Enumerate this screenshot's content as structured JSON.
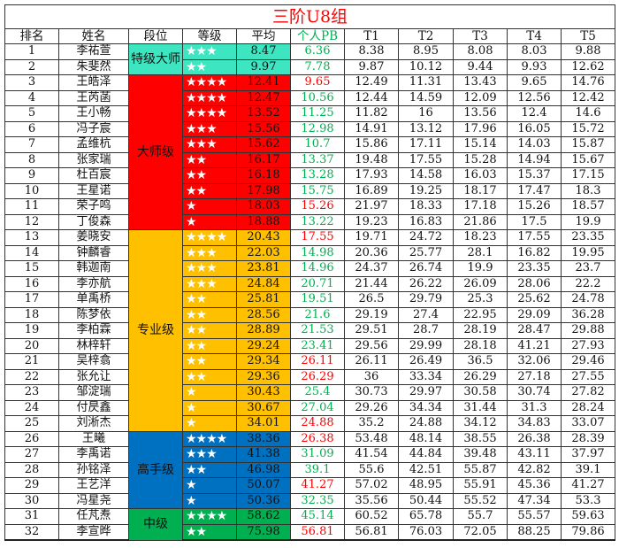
{
  "title": "三阶U8组",
  "headers": [
    "排名",
    "姓名",
    "段位",
    "等级",
    "平均",
    "个人PB",
    "T1",
    "T2",
    "T3",
    "T4",
    "T5"
  ],
  "colors": {
    "特级大师": "#3de6c0",
    "大师级": "#ff0000",
    "专业级": "#ffc000",
    "高手级": "#0070c0",
    "中级": "#00b050",
    "pb_good": "#00b050",
    "pb_bad": "#ff0000"
  },
  "segments": [
    {
      "label": "特级大师",
      "rows": 2
    },
    {
      "label": "大师级",
      "rows": 10
    },
    {
      "label": "专业级",
      "rows": 13
    },
    {
      "label": "高手级",
      "rows": 5
    },
    {
      "label": "中级",
      "rows": 2
    }
  ],
  "star_glyph": "★",
  "rows": [
    {
      "rank": "1",
      "name": "李祐萱",
      "stars": 3,
      "avg": "8.47",
      "pb": "6.36",
      "pb_status": "green",
      "t": [
        "8.38",
        "8.95",
        "8.08",
        "8.03",
        "9.88"
      ]
    },
    {
      "rank": "2",
      "name": "朱斐然",
      "stars": 2,
      "avg": "9.97",
      "pb": "7.78",
      "pb_status": "green",
      "t": [
        "9.87",
        "10.12",
        "9.44",
        "9.93",
        "12.62"
      ]
    },
    {
      "rank": "3",
      "name": "王皓泽",
      "stars": 4,
      "avg": "12.41",
      "pb": "9.65",
      "pb_status": "red",
      "t": [
        "12.49",
        "11.31",
        "13.43",
        "9.65",
        "14.76"
      ]
    },
    {
      "rank": "4",
      "name": "王芮菡",
      "stars": 4,
      "avg": "12.47",
      "pb": "10.56",
      "pb_status": "green",
      "t": [
        "12.44",
        "14.59",
        "12.09",
        "12.56",
        "12.42"
      ]
    },
    {
      "rank": "5",
      "name": "王小畅",
      "stars": 4,
      "avg": "13.52",
      "pb": "11.25",
      "pb_status": "green",
      "t": [
        "11.82",
        "16",
        "13.56",
        "12.4",
        "14.6"
      ]
    },
    {
      "rank": "6",
      "name": "冯子宸",
      "stars": 3,
      "avg": "15.56",
      "pb": "12.98",
      "pb_status": "green",
      "t": [
        "14.91",
        "13.12",
        "17.96",
        "16.05",
        "15.72"
      ]
    },
    {
      "rank": "7",
      "name": "孟维杭",
      "stars": 3,
      "avg": "15.62",
      "pb": "10.7",
      "pb_status": "green",
      "t": [
        "15.86",
        "17.11",
        "15.14",
        "14.03",
        "15.87"
      ]
    },
    {
      "rank": "8",
      "name": "张家瑞",
      "stars": 2,
      "avg": "16.17",
      "pb": "13.37",
      "pb_status": "green",
      "t": [
        "19.48",
        "17.55",
        "15.28",
        "14.94",
        "15.67"
      ]
    },
    {
      "rank": "9",
      "name": "杜百宸",
      "stars": 2,
      "avg": "16.18",
      "pb": "13.28",
      "pb_status": "green",
      "t": [
        "17.93",
        "14.58",
        "16.03",
        "15.37",
        "17.15"
      ]
    },
    {
      "rank": "10",
      "name": "王星诺",
      "stars": 2,
      "avg": "17.98",
      "pb": "15.75",
      "pb_status": "green",
      "t": [
        "16.89",
        "19.25",
        "18.17",
        "17.47",
        "18.3"
      ]
    },
    {
      "rank": "11",
      "name": "荣子鸣",
      "stars": 1,
      "avg": "18.03",
      "pb": "15.26",
      "pb_status": "red",
      "t": [
        "21.97",
        "18.33",
        "17.18",
        "15.26",
        "18.57"
      ]
    },
    {
      "rank": "12",
      "name": "丁俊森",
      "stars": 1,
      "avg": "18.88",
      "pb": "13.22",
      "pb_status": "green",
      "t": [
        "19.23",
        "16.83",
        "21.86",
        "17.5",
        "19.9"
      ]
    },
    {
      "rank": "13",
      "name": "姜晓安",
      "stars": 4,
      "avg": "20.43",
      "pb": "17.55",
      "pb_status": "red",
      "t": [
        "19.71",
        "24.72",
        "18.23",
        "17.55",
        "23.35"
      ]
    },
    {
      "rank": "14",
      "name": "钟麟睿",
      "stars": 3,
      "avg": "22.03",
      "pb": "14.98",
      "pb_status": "green",
      "t": [
        "20.36",
        "25.77",
        "28.1",
        "16.82",
        "19.95"
      ]
    },
    {
      "rank": "15",
      "name": "韩迦南",
      "stars": 3,
      "avg": "23.81",
      "pb": "14.96",
      "pb_status": "green",
      "t": [
        "24.37",
        "26.74",
        "19.9",
        "23.35",
        "23.7"
      ]
    },
    {
      "rank": "16",
      "name": "李亦航",
      "stars": 3,
      "avg": "24.84",
      "pb": "20.71",
      "pb_status": "green",
      "t": [
        "21.44",
        "26.22",
        "26.09",
        "28.06",
        "22.2"
      ]
    },
    {
      "rank": "17",
      "name": "单禹桥",
      "stars": 2,
      "avg": "25.81",
      "pb": "19.51",
      "pb_status": "green",
      "t": [
        "26.5",
        "29.79",
        "25.3",
        "25.62",
        "24.78"
      ]
    },
    {
      "rank": "18",
      "name": "陈梦依",
      "stars": 2,
      "avg": "28.56",
      "pb": "21.6",
      "pb_status": "green",
      "t": [
        "29.19",
        "27.4",
        "22.95",
        "29.09",
        "36.28"
      ]
    },
    {
      "rank": "19",
      "name": "李柏霖",
      "stars": 2,
      "avg": "28.89",
      "pb": "21.53",
      "pb_status": "green",
      "t": [
        "29.51",
        "28.7",
        "28.19",
        "28.47",
        "29.88"
      ]
    },
    {
      "rank": "20",
      "name": "林梓轩",
      "stars": 2,
      "avg": "29.24",
      "pb": "23.41",
      "pb_status": "green",
      "t": [
        "29.56",
        "29.99",
        "28.18",
        "41.21",
        "27.93"
      ]
    },
    {
      "rank": "21",
      "name": "吴梓翕",
      "stars": 2,
      "avg": "29.34",
      "pb": "26.11",
      "pb_status": "red",
      "t": [
        "26.11",
        "26.49",
        "36.5",
        "32.06",
        "29.46"
      ]
    },
    {
      "rank": "22",
      "name": "张允让",
      "stars": 2,
      "avg": "29.36",
      "pb": "26.29",
      "pb_status": "red",
      "t": [
        "36",
        "33.34",
        "26.29",
        "27.18",
        "27.55"
      ]
    },
    {
      "rank": "23",
      "name": "邹淀瑞",
      "stars": 1,
      "avg": "30.43",
      "pb": "25.4",
      "pb_status": "green",
      "t": [
        "30.73",
        "29.97",
        "30.58",
        "30.74",
        "27.82"
      ]
    },
    {
      "rank": "24",
      "name": "付昃鑫",
      "stars": 1,
      "avg": "30.67",
      "pb": "27.04",
      "pb_status": "green",
      "t": [
        "29.26",
        "34.34",
        "31.44",
        "31.3",
        "28.24"
      ]
    },
    {
      "rank": "25",
      "name": "刘淅杰",
      "stars": 1,
      "avg": "34.01",
      "pb": "24.88",
      "pb_status": "red",
      "t": [
        "35.2",
        "24.88",
        "34.12",
        "34.83",
        "33.07"
      ]
    },
    {
      "rank": "26",
      "name": "王曦",
      "stars": 4,
      "avg": "38.36",
      "pb": "26.38",
      "pb_status": "red",
      "t": [
        "53.48",
        "48.14",
        "38.55",
        "26.38",
        "28.39"
      ]
    },
    {
      "rank": "27",
      "name": "李禹诺",
      "stars": 3,
      "avg": "41.38",
      "pb": "31.09",
      "pb_status": "green",
      "t": [
        "41.54",
        "44.84",
        "39.48",
        "43.11",
        "37.97"
      ]
    },
    {
      "rank": "28",
      "name": "孙铭泽",
      "stars": 2,
      "avg": "46.98",
      "pb": "39.1",
      "pb_status": "green",
      "t": [
        "55.6",
        "42.51",
        "55.87",
        "42.82",
        "39.1"
      ]
    },
    {
      "rank": "29",
      "name": "王艺洋",
      "stars": 1,
      "avg": "50.07",
      "pb": "41.27",
      "pb_status": "red",
      "t": [
        "57.02",
        "48.95",
        "55.91",
        "45.36",
        "41.27"
      ]
    },
    {
      "rank": "30",
      "name": "冯星尧",
      "stars": 1,
      "avg": "50.36",
      "pb": "32.35",
      "pb_status": "green",
      "t": [
        "35.56",
        "50.44",
        "55.52",
        "47.34",
        "53.3"
      ]
    },
    {
      "rank": "31",
      "name": "任芃焘",
      "stars": 4,
      "avg": "58.62",
      "pb": "45.14",
      "pb_status": "green",
      "t": [
        "60.52",
        "65.78",
        "55.7",
        "55.57",
        "59.63"
      ]
    },
    {
      "rank": "32",
      "name": "李宣晔",
      "stars": 2,
      "avg": "75.98",
      "pb": "56.81",
      "pb_status": "red",
      "t": [
        "56.81",
        "76.03",
        "72.05",
        "88.25",
        "79.86"
      ]
    }
  ]
}
